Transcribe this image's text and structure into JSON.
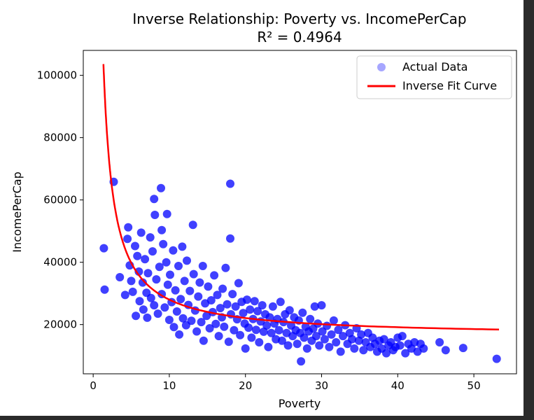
{
  "chart_data": {
    "type": "scatter",
    "title": "Inverse Relationship: Poverty vs. IncomePerCap",
    "subtitle": "R² = 0.4964",
    "xlabel": "Poverty",
    "ylabel": "IncomePerCap",
    "xlim": [
      -1.3,
      55.6
    ],
    "ylim": [
      4200,
      108000
    ],
    "x_ticks": [
      0,
      10,
      20,
      30,
      40,
      50
    ],
    "y_ticks": [
      20000,
      40000,
      60000,
      80000,
      100000
    ],
    "x_tick_labels": [
      "0",
      "10",
      "20",
      "30",
      "40",
      "50"
    ],
    "y_tick_labels": [
      "20000",
      "40000",
      "60000",
      "80000",
      "100000"
    ],
    "grid": false,
    "legend_position": "top-right",
    "series": [
      {
        "name": "Actual Data",
        "kind": "scatter",
        "color": "#0000ff",
        "points": [
          [
            1.4,
            44500
          ],
          [
            1.5,
            31200
          ],
          [
            2.7,
            65800
          ],
          [
            3.5,
            35200
          ],
          [
            4.2,
            29500
          ],
          [
            4.5,
            47500
          ],
          [
            4.6,
            51200
          ],
          [
            4.8,
            39000
          ],
          [
            5.0,
            34000
          ],
          [
            5.2,
            30500
          ],
          [
            5.5,
            45200
          ],
          [
            5.6,
            22800
          ],
          [
            5.8,
            42000
          ],
          [
            6.0,
            37000
          ],
          [
            6.1,
            27500
          ],
          [
            6.3,
            49500
          ],
          [
            6.5,
            33500
          ],
          [
            6.6,
            24800
          ],
          [
            6.8,
            41000
          ],
          [
            7.0,
            30200
          ],
          [
            7.1,
            22200
          ],
          [
            7.2,
            36500
          ],
          [
            7.5,
            48000
          ],
          [
            7.6,
            28500
          ],
          [
            7.8,
            43500
          ],
          [
            8.0,
            26200
          ],
          [
            8.0,
            60300
          ],
          [
            8.1,
            55200
          ],
          [
            8.3,
            34500
          ],
          [
            8.5,
            23500
          ],
          [
            8.7,
            38500
          ],
          [
            8.9,
            63800
          ],
          [
            9.0,
            29800
          ],
          [
            9.0,
            50300
          ],
          [
            9.2,
            45800
          ],
          [
            9.4,
            25500
          ],
          [
            9.6,
            40000
          ],
          [
            9.7,
            55500
          ],
          [
            9.8,
            32800
          ],
          [
            10.0,
            21500
          ],
          [
            10.1,
            36000
          ],
          [
            10.3,
            27200
          ],
          [
            10.5,
            43800
          ],
          [
            10.6,
            19200
          ],
          [
            10.8,
            31000
          ],
          [
            11.0,
            24200
          ],
          [
            11.2,
            38800
          ],
          [
            11.3,
            16800
          ],
          [
            11.5,
            28200
          ],
          [
            11.7,
            45000
          ],
          [
            11.8,
            22000
          ],
          [
            12.0,
            34000
          ],
          [
            12.2,
            19800
          ],
          [
            12.3,
            40500
          ],
          [
            12.5,
            26300
          ],
          [
            12.7,
            30800
          ],
          [
            12.9,
            21200
          ],
          [
            13.1,
            52000
          ],
          [
            13.2,
            36200
          ],
          [
            13.4,
            24500
          ],
          [
            13.6,
            17800
          ],
          [
            13.8,
            29000
          ],
          [
            14.0,
            33500
          ],
          [
            14.2,
            20800
          ],
          [
            14.4,
            38800
          ],
          [
            14.5,
            14800
          ],
          [
            14.7,
            26800
          ],
          [
            14.9,
            22800
          ],
          [
            15.1,
            32200
          ],
          [
            15.3,
            18800
          ],
          [
            15.5,
            27800
          ],
          [
            15.7,
            24000
          ],
          [
            15.9,
            35800
          ],
          [
            16.1,
            20200
          ],
          [
            16.3,
            29500
          ],
          [
            16.5,
            16300
          ],
          [
            16.7,
            25300
          ],
          [
            16.9,
            22300
          ],
          [
            17.0,
            31500
          ],
          [
            17.2,
            19300
          ],
          [
            17.4,
            38200
          ],
          [
            17.6,
            26500
          ],
          [
            17.8,
            14500
          ],
          [
            18.0,
            65200
          ],
          [
            18.0,
            47600
          ],
          [
            18.1,
            23300
          ],
          [
            18.3,
            29800
          ],
          [
            18.5,
            18200
          ],
          [
            18.7,
            25800
          ],
          [
            18.9,
            21700
          ],
          [
            19.1,
            33300
          ],
          [
            19.3,
            16600
          ],
          [
            19.5,
            27300
          ],
          [
            19.7,
            23700
          ],
          [
            19.9,
            20300
          ],
          [
            20.0,
            12300
          ],
          [
            20.2,
            28000
          ],
          [
            20.4,
            19000
          ],
          [
            20.6,
            24800
          ],
          [
            20.8,
            15800
          ],
          [
            21.0,
            21800
          ],
          [
            21.2,
            27500
          ],
          [
            21.4,
            18300
          ],
          [
            21.6,
            24300
          ],
          [
            21.8,
            14300
          ],
          [
            22.0,
            21000
          ],
          [
            22.2,
            26200
          ],
          [
            22.4,
            17700
          ],
          [
            22.6,
            23300
          ],
          [
            22.8,
            19700
          ],
          [
            23.0,
            12800
          ],
          [
            23.2,
            22300
          ],
          [
            23.4,
            17300
          ],
          [
            23.6,
            25800
          ],
          [
            23.8,
            20300
          ],
          [
            24.0,
            15300
          ],
          [
            24.2,
            21800
          ],
          [
            24.4,
            18200
          ],
          [
            24.6,
            27300
          ],
          [
            24.8,
            14800
          ],
          [
            25.0,
            20800
          ],
          [
            25.2,
            23300
          ],
          [
            25.4,
            17300
          ],
          [
            25.6,
            13300
          ],
          [
            25.8,
            24600
          ],
          [
            26.0,
            19700
          ],
          [
            26.2,
            16300
          ],
          [
            26.4,
            22300
          ],
          [
            26.6,
            18200
          ],
          [
            26.8,
            13800
          ],
          [
            27.0,
            21300
          ],
          [
            27.2,
            17300
          ],
          [
            27.3,
            8200
          ],
          [
            27.5,
            23800
          ],
          [
            27.7,
            15800
          ],
          [
            27.9,
            19300
          ],
          [
            28.1,
            12300
          ],
          [
            28.3,
            17800
          ],
          [
            28.5,
            21800
          ],
          [
            28.7,
            14800
          ],
          [
            28.9,
            18700
          ],
          [
            29.1,
            25800
          ],
          [
            29.3,
            16300
          ],
          [
            29.5,
            20300
          ],
          [
            29.7,
            13300
          ],
          [
            30.0,
            26200
          ],
          [
            30.1,
            17800
          ],
          [
            30.4,
            15300
          ],
          [
            30.7,
            19600
          ],
          [
            31.0,
            12800
          ],
          [
            31.3,
            16800
          ],
          [
            31.6,
            21300
          ],
          [
            31.9,
            14300
          ],
          [
            32.2,
            18300
          ],
          [
            32.5,
            11300
          ],
          [
            32.8,
            16300
          ],
          [
            33.1,
            19800
          ],
          [
            33.4,
            13800
          ],
          [
            33.7,
            17300
          ],
          [
            34.0,
            15300
          ],
          [
            34.3,
            12300
          ],
          [
            34.6,
            18800
          ],
          [
            34.9,
            14800
          ],
          [
            35.2,
            16800
          ],
          [
            35.5,
            11800
          ],
          [
            35.8,
            14300
          ],
          [
            36.1,
            17300
          ],
          [
            36.4,
            12800
          ],
          [
            36.7,
            15800
          ],
          [
            37.0,
            13800
          ],
          [
            37.3,
            11300
          ],
          [
            37.6,
            14800
          ],
          [
            37.9,
            12300
          ],
          [
            38.2,
            15300
          ],
          [
            38.5,
            10800
          ],
          [
            38.8,
            13300
          ],
          [
            39.1,
            14300
          ],
          [
            39.4,
            11800
          ],
          [
            39.7,
            12800
          ],
          [
            40.0,
            15800
          ],
          [
            40.3,
            13300
          ],
          [
            40.6,
            16300
          ],
          [
            41.0,
            10800
          ],
          [
            41.4,
            13800
          ],
          [
            41.8,
            12300
          ],
          [
            42.2,
            14300
          ],
          [
            42.6,
            11300
          ],
          [
            43.0,
            13800
          ],
          [
            43.4,
            12300
          ],
          [
            45.5,
            14300
          ],
          [
            46.3,
            11800
          ],
          [
            48.6,
            12500
          ],
          [
            53.0,
            9000
          ]
        ]
      },
      {
        "name": "Inverse Fit Curve",
        "kind": "line",
        "color": "#ff0000",
        "equation": "IncomePerCap = 16200 + 118000 / Poverty",
        "a": 16200,
        "b": 118000,
        "x_range": [
          1.35,
          53.3
        ]
      }
    ]
  },
  "legend": {
    "scatter_label": "Actual Data",
    "line_label": "Inverse Fit Curve"
  }
}
